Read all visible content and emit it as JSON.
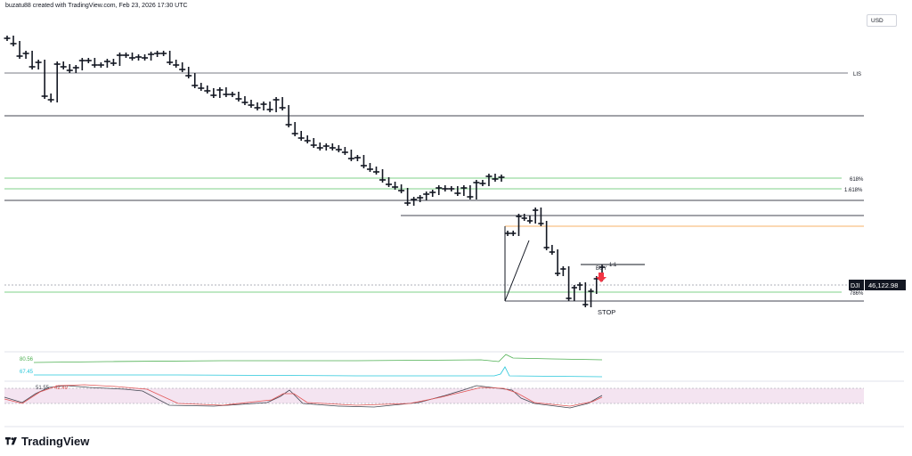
{
  "header": {
    "credit": "buzatu88 created with TradingView.com, Feb 23, 2026 17:30 UTC"
  },
  "brand": {
    "name": "TradingView"
  },
  "currency": "USD",
  "colors": {
    "candle": "#131722",
    "green_line": "#7fd18a",
    "orange_line": "#f7b267",
    "gray_line": "#787b86",
    "cyan": "#26c6da",
    "green_ind": "#4caf50",
    "rsi_black": "#434651",
    "rsi_red": "#e25555",
    "rsi_band": "#f4e4f1",
    "buy_arrow": "#f23645"
  },
  "chart_data": {
    "type": "line",
    "symbol": "DJI",
    "last_price": "46,122.98",
    "price_series": [
      43,
      49,
      63,
      60,
      75,
      70,
      108,
      112,
      72,
      75,
      79,
      76,
      68,
      68,
      73,
      73,
      69,
      71,
      62,
      62,
      65,
      64,
      65,
      61,
      60,
      60,
      70,
      73,
      78,
      85,
      96,
      99,
      102,
      107,
      101,
      106,
      106,
      111,
      115,
      118,
      121,
      117,
      123,
      112,
      121,
      140,
      150,
      155,
      158,
      163,
      166,
      164,
      166,
      168,
      171,
      178,
      177,
      186,
      190,
      193,
      202,
      207,
      210,
      214,
      228,
      224,
      222,
      218,
      216,
      211,
      212,
      212,
      217,
      211,
      221,
      205,
      206,
      198,
      201,
      199
    ],
    "price_series_2": [
      262,
      262,
      243,
      245,
      248,
      236,
      251,
      278,
      283,
      307,
      302,
      335,
      323,
      320,
      342,
      327,
      313,
      300
    ],
    "levels": [
      {
        "label": "LIS",
        "color": "#787b86"
      },
      {
        "label": "618%",
        "color": "#7fd18a"
      },
      {
        "label": "1.618%",
        "color": "#7fd18a"
      },
      {
        "label": "786%",
        "color": "#7fd18a"
      }
    ],
    "annotations": {
      "buy": "BUY",
      "stop": "STOP",
      "rr": "1:1"
    },
    "indicator_1": {
      "green_value": "80.56",
      "cyan_value": "67.45"
    },
    "indicator_2": {
      "black_value": "51.55",
      "red_value": "42.49"
    }
  }
}
